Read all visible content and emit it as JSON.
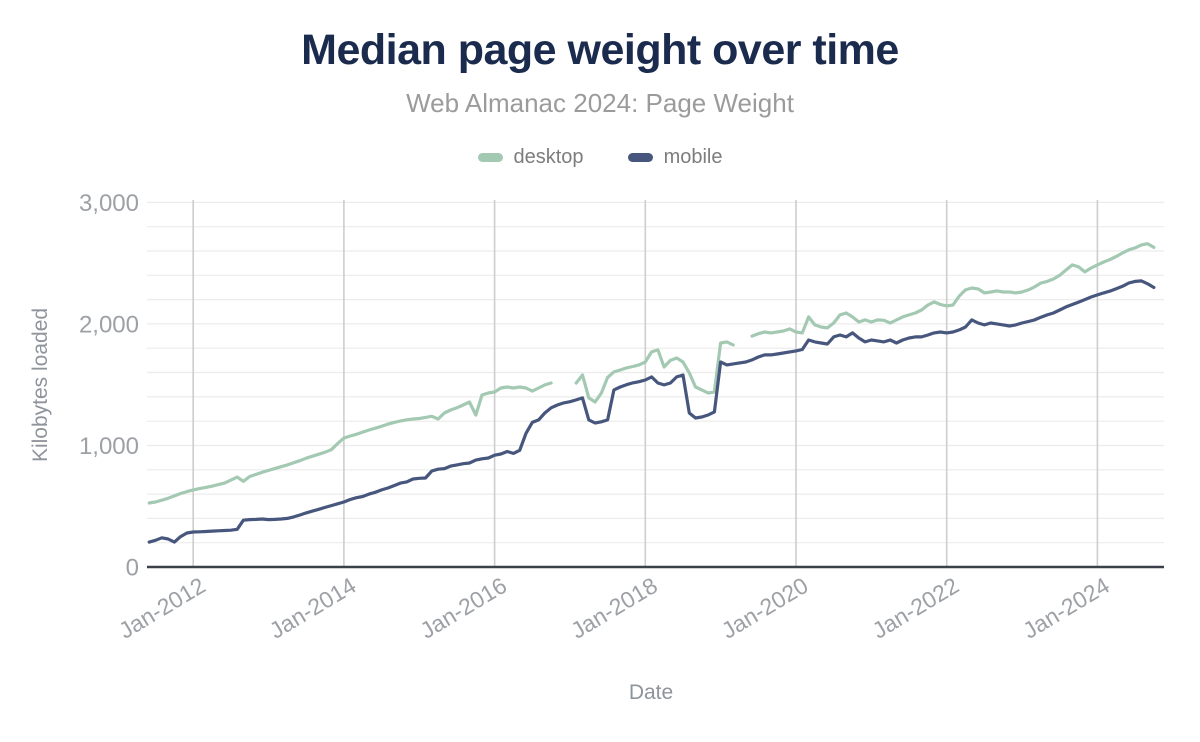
{
  "header": {
    "title": "Median page weight over time",
    "subtitle": "Web Almanac 2024: Page Weight"
  },
  "colors": {
    "title": "#1b2b4e",
    "subtitle": "#9b9b9b",
    "legend_text": "#7d7d7d",
    "tick_label": "#9da1a6",
    "axis_title": "#8e949b",
    "axis_line": "#394049",
    "grid_vertical": "#cdcdcd",
    "grid_minor": "#ececec",
    "desktop": "#a3c9b3",
    "mobile": "#47567d"
  },
  "chart_data": {
    "type": "line",
    "title": "Median page weight over time",
    "subtitle": "Web Almanac 2024: Page Weight",
    "xlabel": "Date",
    "ylabel": "Kilobytes loaded",
    "ylim": [
      0,
      3000
    ],
    "grid": true,
    "legend_position": "top",
    "y_major_ticks": [
      {
        "value": 0,
        "label": "0"
      },
      {
        "value": 1000,
        "label": "1,000"
      },
      {
        "value": 2000,
        "label": "2,000"
      },
      {
        "value": 3000,
        "label": "3,000"
      }
    ],
    "y_minor_grid_step": 200,
    "x_ticks": [
      {
        "x": 2012,
        "label": "Jan-2012"
      },
      {
        "x": 2014,
        "label": "Jan-2014"
      },
      {
        "x": 2016,
        "label": "Jan-2016"
      },
      {
        "x": 2018,
        "label": "Jan-2018"
      },
      {
        "x": 2020,
        "label": "Jan-2020"
      },
      {
        "x": 2022,
        "label": "Jan-2022"
      },
      {
        "x": 2024,
        "label": "Jan-2024"
      }
    ],
    "x_start": "2011-06",
    "x_end": "2024-10",
    "x_step": "monthly",
    "series": [
      {
        "name": "desktop",
        "color": "#a3c9b3",
        "values": [
          527,
          535,
          550,
          565,
          585,
          605,
          620,
          634,
          645,
          655,
          665,
          678,
          690,
          715,
          740,
          705,
          745,
          762,
          780,
          795,
          810,
          825,
          840,
          858,
          875,
          895,
          912,
          928,
          945,
          965,
          1015,
          1061,
          1078,
          1092,
          1110,
          1127,
          1142,
          1158,
          1176,
          1190,
          1201,
          1211,
          1218,
          1222,
          1231,
          1240,
          1218,
          1267,
          1292,
          1310,
          1333,
          1358,
          1250,
          1415,
          1432,
          1440,
          1473,
          1481,
          1473,
          1481,
          1473,
          1447,
          1473,
          1498,
          1514,
          null,
          null,
          null,
          1514,
          1580,
          1391,
          1358,
          1430,
          1560,
          1605,
          1621,
          1638,
          1650,
          1663,
          1687,
          1770,
          1786,
          1646,
          1700,
          1720,
          1687,
          1597,
          1481,
          1457,
          1432,
          1440,
          1843,
          1852,
          1827,
          null,
          null,
          1900,
          1920,
          1934,
          1926,
          1934,
          1942,
          1959,
          1934,
          1926,
          2058,
          1992,
          1975,
          1967,
          2008,
          2074,
          2090,
          2058,
          2016,
          2033,
          2016,
          2033,
          2030,
          2008,
          2033,
          2058,
          2074,
          2090,
          2115,
          2156,
          2181,
          2160,
          2148,
          2156,
          2230,
          2280,
          2296,
          2288,
          2255,
          2263,
          2272,
          2263,
          2263,
          2255,
          2263,
          2280,
          2305,
          2337,
          2350,
          2370,
          2400,
          2444,
          2486,
          2469,
          2428,
          2460,
          2486,
          2510,
          2530,
          2555,
          2584,
          2610,
          2626,
          2650,
          2660,
          2630
        ]
      },
      {
        "name": "mobile",
        "color": "#47567d",
        "values": [
          205,
          220,
          240,
          230,
          205,
          250,
          280,
          288,
          290,
          292,
          295,
          298,
          300,
          303,
          310,
          385,
          390,
          392,
          395,
          390,
          392,
          395,
          400,
          412,
          428,
          445,
          460,
          475,
          490,
          505,
          520,
          535,
          555,
          570,
          580,
          600,
          615,
          634,
          650,
          670,
          690,
          700,
          724,
          730,
          732,
          790,
          805,
          810,
          830,
          840,
          850,
          856,
          880,
          890,
          897,
          920,
          930,
          950,
          935,
          960,
          1100,
          1190,
          1210,
          1267,
          1310,
          1333,
          1350,
          1360,
          1375,
          1391,
          1210,
          1185,
          1195,
          1210,
          1457,
          1481,
          1500,
          1515,
          1525,
          1539,
          1564,
          1514,
          1498,
          1514,
          1564,
          1580,
          1267,
          1226,
          1234,
          1251,
          1276,
          1687,
          1663,
          1671,
          1679,
          1687,
          1704,
          1728,
          1745,
          1745,
          1753,
          1761,
          1770,
          1778,
          1790,
          1868,
          1852,
          1843,
          1835,
          1893,
          1909,
          1893,
          1926,
          1884,
          1852,
          1868,
          1860,
          1852,
          1868,
          1843,
          1868,
          1884,
          1893,
          1893,
          1909,
          1926,
          1934,
          1926,
          1934,
          1951,
          1975,
          2033,
          2008,
          1992,
          2008,
          2000,
          1992,
          1983,
          1992,
          2008,
          2020,
          2033,
          2055,
          2074,
          2090,
          2115,
          2140,
          2160,
          2180,
          2200,
          2222,
          2239,
          2255,
          2270,
          2290,
          2310,
          2337,
          2350,
          2354,
          2330,
          2300
        ]
      }
    ]
  }
}
